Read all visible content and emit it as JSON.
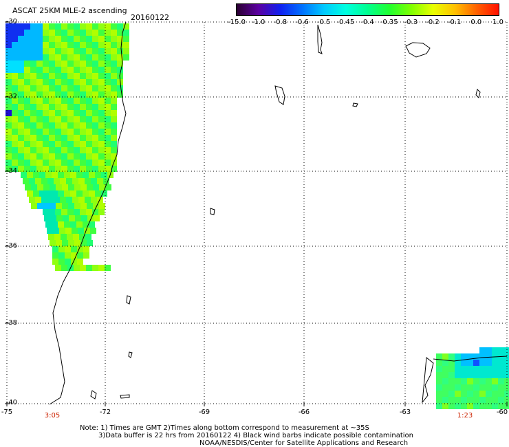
{
  "header": {
    "title": "ASCAT 25KM MLE-2 ascending",
    "date": "20160122"
  },
  "colorbar": {
    "labels": [
      "-15.0",
      "-1.0",
      "-0.8",
      "-0.6",
      "-0.5",
      "-0.45",
      "-0.4",
      "-0.35",
      "-0.3",
      "-0.2",
      "-0.1",
      "0.0",
      "1.0"
    ],
    "colors": [
      "#2a0030",
      "#5a00a0",
      "#1020f0",
      "#0070ff",
      "#00c8ff",
      "#00ffe0",
      "#00ff90",
      "#20ff30",
      "#80ff00",
      "#e8ff00",
      "#ffc000",
      "#ff6000",
      "#ff1000"
    ]
  },
  "axes": {
    "lat_labels": [
      "-30",
      "-32",
      "-34",
      "-36",
      "-38",
      "-40"
    ],
    "lon_labels": [
      "-75",
      "-72",
      "-69",
      "-66",
      "-63",
      "-60"
    ]
  },
  "times": {
    "left_pass": "3:05",
    "right_pass": "1:23"
  },
  "notes": {
    "line1": "Note: 1) Times are GMT 2)Times along bottom correspond to measurement at ~35S",
    "line2": "3)Data buffer is 22 hrs from 20160122 4) Black wind barbs indicate possible contamination",
    "line3": "NOAA/NESDIS/Center for Satellite Applications and Research"
  }
}
